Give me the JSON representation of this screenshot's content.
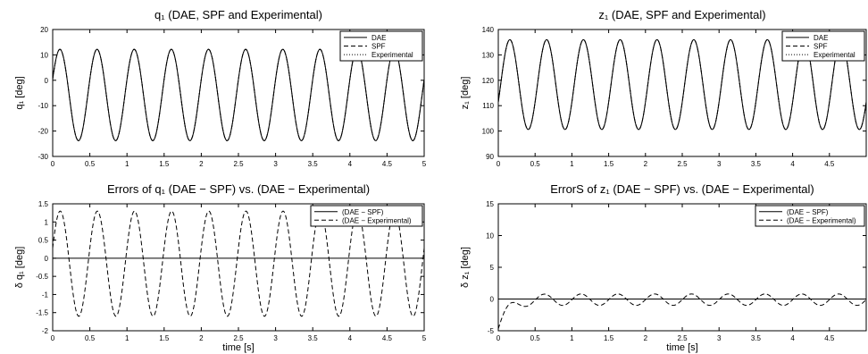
{
  "chart_data": [
    {
      "type": "line",
      "title": "q₁ (DAE, SPF and Experimental)",
      "ylabel": "q₁ [deg]",
      "xlabel": "",
      "xlim": [
        0,
        5
      ],
      "ylim": [
        -30,
        20
      ],
      "xticks": [
        "0",
        "0.5",
        "1",
        "1.5",
        "2",
        "2.5",
        "3",
        "3.5",
        "4",
        "4.5",
        "5"
      ],
      "yticks": [
        "20",
        "10",
        "0",
        "-10",
        "-20",
        "-30"
      ],
      "legend": {
        "position": "top-right",
        "entries": [
          "DAE",
          "SPF",
          "Experimental"
        ]
      },
      "series": [
        {
          "name": "DAE",
          "style": "solid",
          "kind": "sine",
          "offset": -5.8,
          "amp": 18,
          "freq": 2.0,
          "phase": 0.35
        },
        {
          "name": "SPF",
          "style": "dashed",
          "kind": "sine",
          "offset": -5.8,
          "amp": 18,
          "freq": 2.0,
          "phase": 0.35
        },
        {
          "name": "Experimental",
          "style": "dotted",
          "kind": "sine",
          "offset": -5.8,
          "amp": 18,
          "freq": 2.0,
          "phase": 0.35
        }
      ]
    },
    {
      "type": "line",
      "title": "z₁ (DAE, SPF and Experimental)",
      "ylabel": "z₁ [deg]",
      "xlabel": "",
      "xlim": [
        0,
        5
      ],
      "ylim": [
        90,
        140
      ],
      "xticks": [
        "0",
        "0.5",
        "1",
        "1.5",
        "2",
        "2.5",
        "3",
        "3.5",
        "4",
        "4.5"
      ],
      "yticks": [
        "140",
        "130",
        "120",
        "110",
        "100",
        "90"
      ],
      "legend": {
        "position": "top-right",
        "entries": [
          "DAE",
          "SPF",
          "Experimental"
        ]
      },
      "series": [
        {
          "name": "DAE",
          "style": "solid",
          "kind": "sine",
          "offset": 118.3,
          "amp": 17.7,
          "freq": 2.0,
          "phase": -0.4
        },
        {
          "name": "SPF",
          "style": "dashed",
          "kind": "sine",
          "offset": 118.3,
          "amp": 17.7,
          "freq": 2.0,
          "phase": -0.4
        },
        {
          "name": "Experimental",
          "style": "dotted",
          "kind": "sine",
          "offset": 118.3,
          "amp": 17.7,
          "freq": 2.0,
          "phase": -0.4
        }
      ]
    },
    {
      "type": "line",
      "title": "Errors of q₁ (DAE − SPF) vs. (DAE − Experimental)",
      "ylabel": "δ q₁ [deg]",
      "xlabel": "time [s]",
      "xlim": [
        0,
        5
      ],
      "ylim": [
        -2,
        1.5
      ],
      "xticks": [
        "0",
        "0.5",
        "1",
        "1.5",
        "2",
        "2.5",
        "3",
        "3.5",
        "4",
        "4.5",
        "5"
      ],
      "yticks": [
        "1.5",
        "1",
        "0.5",
        "0",
        "-0.5",
        "-1",
        "-1.5",
        "-2"
      ],
      "legend": {
        "position": "top-right",
        "entries": [
          "(DAE − SPF)",
          "(DAE − Experimental)"
        ]
      },
      "series": [
        {
          "name": "(DAE − SPF)",
          "style": "solid",
          "kind": "const",
          "value": 0
        },
        {
          "name": "(DAE − Experimental)",
          "style": "dashed",
          "kind": "sine",
          "offset": -0.15,
          "amp": 1.45,
          "freq": 2.0,
          "phase": 0.3
        }
      ]
    },
    {
      "type": "line",
      "title": "ErrorS of z₁ (DAE − SPF) vs. (DAE − Experimental)",
      "ylabel": "δ z₁ [deg]",
      "xlabel": "time [s]",
      "xlim": [
        0,
        5
      ],
      "ylim": [
        -5,
        15
      ],
      "xticks": [
        "0",
        "0.5",
        "1",
        "1.5",
        "2",
        "2.5",
        "3",
        "3.5",
        "4",
        "4.5"
      ],
      "yticks": [
        "15",
        "10",
        "5",
        "0",
        "-5"
      ],
      "legend": {
        "position": "top-right",
        "entries": [
          "(DAE − SPF)",
          "(DAE − Experimental)"
        ]
      },
      "series": [
        {
          "name": "(DAE − SPF)",
          "style": "solid",
          "kind": "const",
          "value": 0
        },
        {
          "name": "(DAE − Experimental)",
          "style": "dashed",
          "kind": "decay",
          "offset": -0.1,
          "amp": 0.9,
          "freq": 2.0,
          "phase": 0.0,
          "start": -4.7,
          "tau": 0.12
        }
      ]
    }
  ]
}
